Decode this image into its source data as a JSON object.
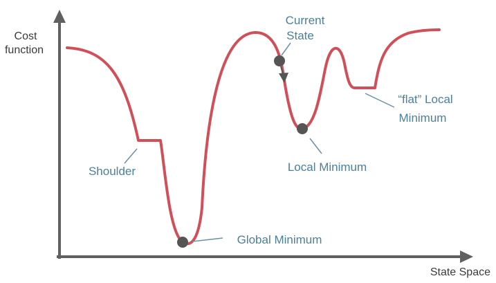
{
  "colors": {
    "curve": "#d0505a",
    "axis": "#606060",
    "point": "#555555",
    "label": "#4b7f9a",
    "leader": "#6b8fa3"
  },
  "axes": {
    "y_label_line1": "Cost",
    "y_label_line2": "function",
    "x_label": "State Space"
  },
  "labels": {
    "current_state_line1": "Current",
    "current_state_line2": "State",
    "flat_local_min_line1": "“flat” Local",
    "flat_local_min_line2": "Minimum",
    "shoulder": "Shoulder",
    "local_minimum": "Local Minimum",
    "global_minimum": "Global Minimum"
  },
  "icons": {
    "y_axis_arrow": "arrow-up-icon",
    "x_axis_arrow": "arrow-right-icon",
    "direction_arrow": "arrow-down-icon"
  }
}
